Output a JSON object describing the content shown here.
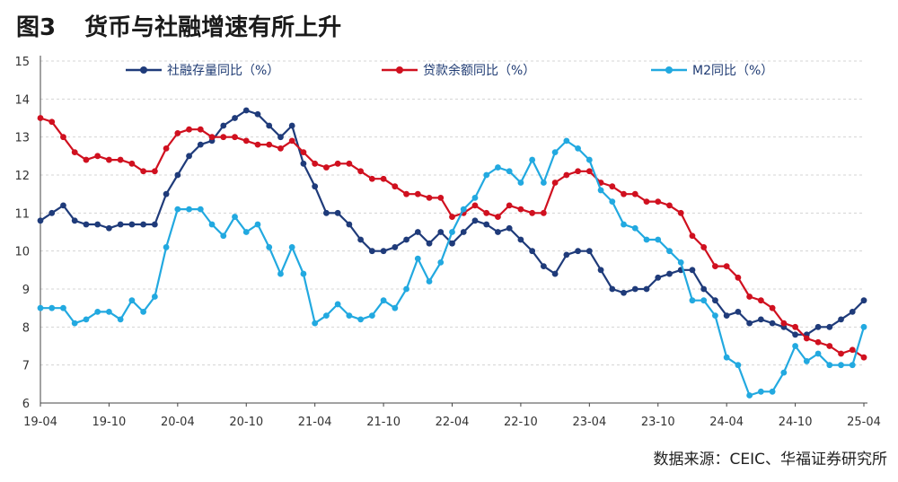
{
  "header": {
    "fig_num": "图3",
    "title": "货币与社融增速有所上升"
  },
  "source": "数据来源：CEIC、华福证券研究所",
  "chart_data": {
    "type": "line",
    "title": "货币与社融增速有所上升",
    "xlabel": "",
    "ylabel": "",
    "ylim": [
      6,
      15
    ],
    "yticks": [
      6,
      7,
      8,
      9,
      10,
      11,
      12,
      13,
      14,
      15
    ],
    "xtick_labels": [
      "19-04",
      "19-10",
      "20-04",
      "20-10",
      "21-04",
      "21-10",
      "22-04",
      "22-10",
      "23-04",
      "23-10",
      "24-04",
      "24-10",
      "25-04"
    ],
    "x_start": "2019-04",
    "x_end": "2025-04",
    "grid": "horizontal-dashed",
    "legend": "top",
    "series": [
      {
        "name": "社融存量同比（%）",
        "color": "#1f3b7a",
        "values": [
          10.8,
          11.0,
          11.2,
          10.8,
          10.7,
          10.7,
          10.6,
          10.7,
          10.7,
          10.7,
          10.7,
          11.5,
          12.0,
          12.5,
          12.8,
          12.9,
          13.3,
          13.5,
          13.7,
          13.6,
          13.3,
          13.0,
          13.3,
          12.3,
          11.7,
          11.0,
          11.0,
          10.7,
          10.3,
          10.0,
          10.0,
          10.1,
          10.3,
          10.5,
          10.2,
          10.5,
          10.2,
          10.5,
          10.8,
          10.7,
          10.5,
          10.6,
          10.3,
          10.0,
          9.6,
          9.4,
          9.9,
          10.0,
          10.0,
          9.5,
          9.0,
          8.9,
          9.0,
          9.0,
          9.3,
          9.4,
          9.5,
          9.5,
          9.0,
          8.7,
          8.3,
          8.4,
          8.1,
          8.2,
          8.1,
          8.0,
          7.8,
          7.8,
          8.0,
          8.0,
          8.2,
          8.4,
          8.7
        ]
      },
      {
        "name": "贷款余额同比（%）",
        "color": "#d0101f",
        "values": [
          13.5,
          13.4,
          13.0,
          12.6,
          12.4,
          12.5,
          12.4,
          12.4,
          12.3,
          12.1,
          12.1,
          12.7,
          13.1,
          13.2,
          13.2,
          13.0,
          13.0,
          13.0,
          12.9,
          12.8,
          12.8,
          12.7,
          12.9,
          12.6,
          12.3,
          12.2,
          12.3,
          12.3,
          12.1,
          11.9,
          11.9,
          11.7,
          11.5,
          11.5,
          11.4,
          11.4,
          10.9,
          11.0,
          11.2,
          11.0,
          10.9,
          11.2,
          11.1,
          11.0,
          11.0,
          11.8,
          12.0,
          12.1,
          12.1,
          11.8,
          11.7,
          11.5,
          11.5,
          11.3,
          11.3,
          11.2,
          11.0,
          10.4,
          10.1,
          9.6,
          9.6,
          9.3,
          8.8,
          8.7,
          8.5,
          8.1,
          8.0,
          7.7,
          7.6,
          7.5,
          7.3,
          7.4,
          7.2
        ]
      },
      {
        "name": "M2同比（%）",
        "color": "#22a9e0",
        "values": [
          8.5,
          8.5,
          8.5,
          8.1,
          8.2,
          8.4,
          8.4,
          8.2,
          8.7,
          8.4,
          8.8,
          10.1,
          11.1,
          11.1,
          11.1,
          10.7,
          10.4,
          10.9,
          10.5,
          10.7,
          10.1,
          9.4,
          10.1,
          9.4,
          8.1,
          8.3,
          8.6,
          8.3,
          8.2,
          8.3,
          8.7,
          8.5,
          9.0,
          9.8,
          9.2,
          9.7,
          10.5,
          11.1,
          11.4,
          12.0,
          12.2,
          12.1,
          11.8,
          12.4,
          11.8,
          12.6,
          12.9,
          12.7,
          12.4,
          11.6,
          11.3,
          10.7,
          10.6,
          10.3,
          10.3,
          10.0,
          9.7,
          8.7,
          8.7,
          8.3,
          7.2,
          7.0,
          6.2,
          6.3,
          6.3,
          6.8,
          7.5,
          7.1,
          7.3,
          7.0,
          7.0,
          7.0,
          8.0
        ]
      }
    ]
  }
}
